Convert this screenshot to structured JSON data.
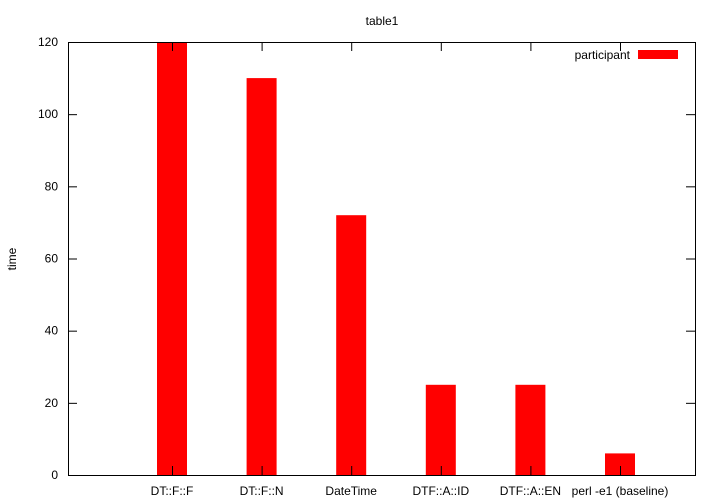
{
  "chart_data": {
    "type": "bar",
    "title": "table1",
    "xlabel": "",
    "ylabel": "time",
    "ylim": [
      0,
      120
    ],
    "yticks": [
      0,
      20,
      40,
      60,
      80,
      100,
      120
    ],
    "categories": [
      "DT::F::F",
      "DT::F::N",
      "DateTime",
      "DTF::A::ID",
      "DTF::A::EN",
      "perl -e1 (baseline)"
    ],
    "series": [
      {
        "name": "participant",
        "values": [
          120,
          110,
          72,
          25,
          25,
          6
        ],
        "color": "#ff0000"
      }
    ],
    "grid": false,
    "legend_position": "top-right"
  }
}
